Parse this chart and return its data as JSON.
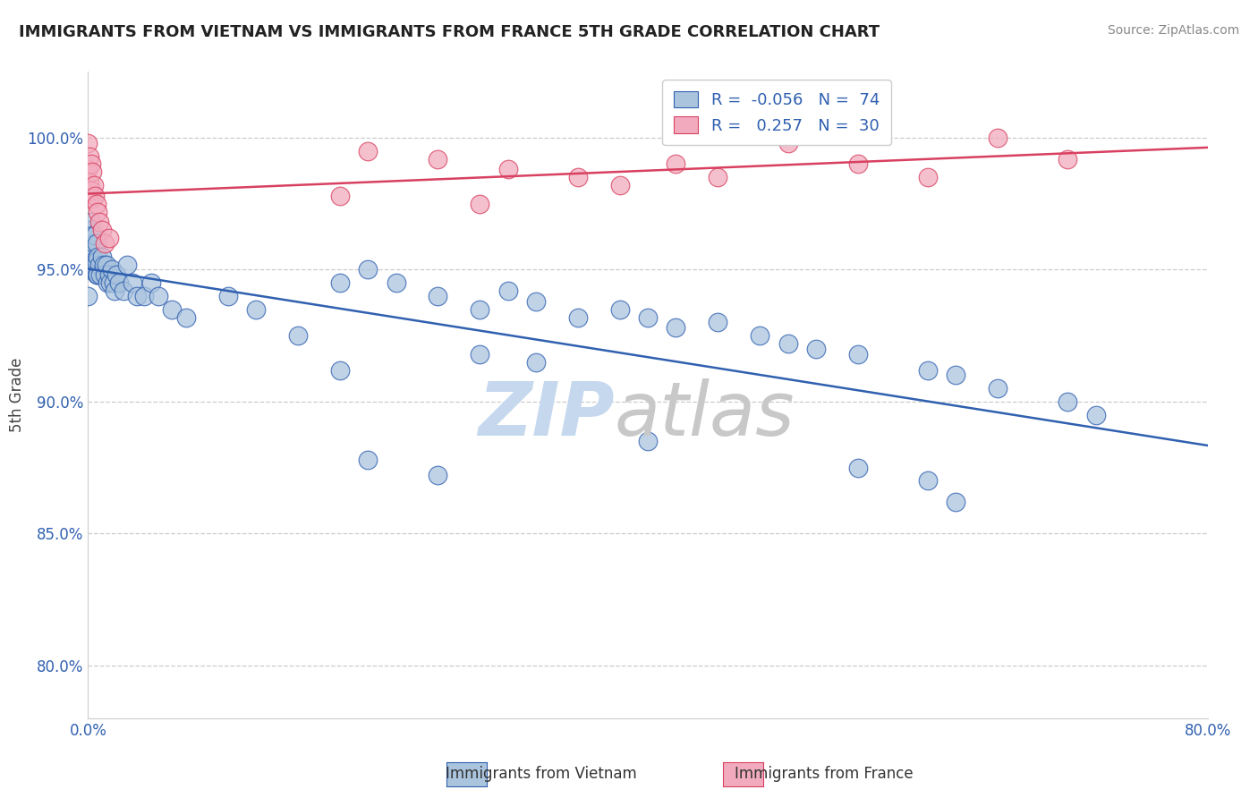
{
  "title": "IMMIGRANTS FROM VIETNAM VS IMMIGRANTS FROM FRANCE 5TH GRADE CORRELATION CHART",
  "source": "Source: ZipAtlas.com",
  "ylabel": "5th Grade",
  "xlim": [
    0.0,
    0.8
  ],
  "ylim": [
    0.78,
    1.025
  ],
  "legend1_R": "-0.056",
  "legend1_N": "74",
  "legend2_R": "0.257",
  "legend2_N": "30",
  "blue_color": "#aac4de",
  "pink_color": "#f2abbe",
  "line_blue": "#3060b0",
  "line_pink": "#d84060",
  "vietnam_x": [
    0.0,
    0.0,
    0.0,
    0.001,
    0.001,
    0.002,
    0.002,
    0.003,
    0.003,
    0.004,
    0.004,
    0.005,
    0.005,
    0.006,
    0.006,
    0.006,
    0.007,
    0.007,
    0.008,
    0.009,
    0.01,
    0.011,
    0.012,
    0.013,
    0.014,
    0.015,
    0.016,
    0.017,
    0.018,
    0.019,
    0.02,
    0.022,
    0.025,
    0.028,
    0.032,
    0.035,
    0.04,
    0.045,
    0.05,
    0.06,
    0.07,
    0.1,
    0.12,
    0.15,
    0.18,
    0.2,
    0.22,
    0.25,
    0.28,
    0.3,
    0.32,
    0.35,
    0.38,
    0.4,
    0.42,
    0.45,
    0.48,
    0.5,
    0.52,
    0.55,
    0.6,
    0.62,
    0.65,
    0.7,
    0.72,
    0.6,
    0.28,
    0.32,
    0.18,
    0.4,
    0.2,
    0.25,
    0.55,
    0.62
  ],
  "vietnam_y": [
    0.96,
    0.95,
    0.94,
    0.965,
    0.955,
    0.968,
    0.958,
    0.963,
    0.953,
    0.96,
    0.95,
    0.963,
    0.953,
    0.96,
    0.953,
    0.948,
    0.955,
    0.948,
    0.952,
    0.948,
    0.955,
    0.952,
    0.948,
    0.952,
    0.945,
    0.948,
    0.945,
    0.95,
    0.945,
    0.942,
    0.948,
    0.945,
    0.942,
    0.952,
    0.945,
    0.94,
    0.94,
    0.945,
    0.94,
    0.935,
    0.932,
    0.94,
    0.935,
    0.925,
    0.945,
    0.95,
    0.945,
    0.94,
    0.935,
    0.942,
    0.938,
    0.932,
    0.935,
    0.932,
    0.928,
    0.93,
    0.925,
    0.922,
    0.92,
    0.918,
    0.912,
    0.91,
    0.905,
    0.9,
    0.895,
    0.87,
    0.918,
    0.915,
    0.912,
    0.885,
    0.878,
    0.872,
    0.875,
    0.862
  ],
  "france_x": [
    0.0,
    0.0,
    0.001,
    0.001,
    0.002,
    0.002,
    0.003,
    0.003,
    0.004,
    0.005,
    0.006,
    0.007,
    0.008,
    0.01,
    0.012,
    0.2,
    0.25,
    0.3,
    0.35,
    0.42,
    0.5,
    0.55,
    0.6,
    0.65,
    0.7,
    0.38,
    0.18,
    0.28,
    0.45,
    0.015
  ],
  "france_y": [
    0.998,
    0.988,
    0.993,
    0.983,
    0.99,
    0.98,
    0.987,
    0.977,
    0.982,
    0.978,
    0.975,
    0.972,
    0.968,
    0.965,
    0.96,
    0.995,
    0.992,
    0.988,
    0.985,
    0.99,
    0.998,
    0.99,
    0.985,
    1.0,
    0.992,
    0.982,
    0.978,
    0.975,
    0.985,
    0.962
  ]
}
